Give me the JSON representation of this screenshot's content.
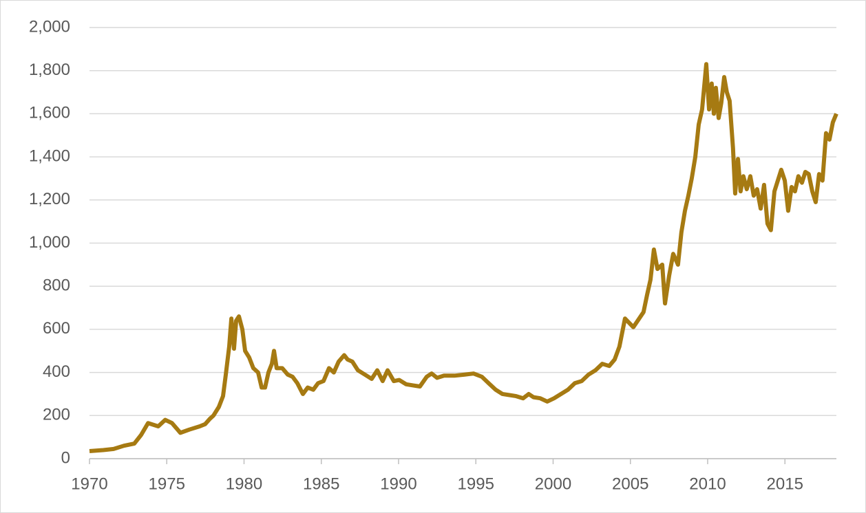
{
  "chart_data": {
    "type": "line",
    "x": [
      1970.0,
      1970.89,
      1971.56,
      1972.23,
      1972.9,
      1973.34,
      1973.79,
      1974.45,
      1974.9,
      1975.34,
      1975.88,
      1976.46,
      1977.13,
      1977.48,
      1977.79,
      1978.02,
      1978.37,
      1978.64,
      1978.82,
      1979.04,
      1979.18,
      1979.35,
      1979.49,
      1979.67,
      1979.89,
      1980.07,
      1980.33,
      1980.6,
      1980.91,
      1981.14,
      1981.36,
      1981.58,
      1981.8,
      1981.94,
      1982.11,
      1982.47,
      1982.83,
      1983.14,
      1983.45,
      1983.81,
      1984.12,
      1984.48,
      1984.79,
      1985.14,
      1985.5,
      1985.81,
      1986.12,
      1986.48,
      1986.7,
      1987.01,
      1987.37,
      1987.82,
      1988.26,
      1988.62,
      1988.97,
      1989.29,
      1989.69,
      1990.04,
      1990.49,
      1990.93,
      1991.38,
      1991.82,
      1992.14,
      1992.49,
      1992.94,
      1993.61,
      1994.27,
      1994.85,
      1995.39,
      1995.83,
      1996.28,
      1996.72,
      1997.17,
      1997.61,
      1998.06,
      1998.42,
      1998.73,
      1999.17,
      1999.62,
      2000.06,
      2000.51,
      2000.96,
      2001.4,
      2001.85,
      2002.29,
      2002.74,
      2003.18,
      2003.63,
      2003.98,
      2004.29,
      2004.65,
      2005.19,
      2005.85,
      2006.08,
      2006.3,
      2006.52,
      2006.75,
      2007.06,
      2007.24,
      2007.51,
      2007.77,
      2008.08,
      2008.3,
      2008.53,
      2008.75,
      2008.97,
      2009.2,
      2009.42,
      2009.64,
      2009.91,
      2010.09,
      2010.26,
      2010.4,
      2010.53,
      2010.71,
      2010.88,
      2011.07,
      2011.24,
      2011.42,
      2011.64,
      2011.78,
      2011.96,
      2012.13,
      2012.31,
      2012.53,
      2012.76,
      2012.98,
      2013.2,
      2013.43,
      2013.65,
      2013.87,
      2014.09,
      2014.32,
      2014.54,
      2014.76,
      2014.99,
      2015.21,
      2015.43,
      2015.65,
      2015.87,
      2016.1,
      2016.32,
      2016.54,
      2016.77,
      2016.99,
      2017.21,
      2017.43,
      2017.66,
      2017.88,
      2018.1,
      2018.33
    ],
    "series": [
      {
        "color": "#a67a12",
        "values": [
          35,
          40,
          45,
          60,
          70,
          110,
          165,
          150,
          180,
          165,
          120,
          135,
          150,
          160,
          185,
          200,
          240,
          290,
          390,
          520,
          650,
          510,
          640,
          660,
          600,
          500,
          470,
          420,
          400,
          330,
          330,
          400,
          440,
          500,
          420,
          420,
          390,
          380,
          350,
          300,
          330,
          320,
          350,
          360,
          420,
          400,
          450,
          480,
          460,
          450,
          410,
          390,
          370,
          410,
          360,
          410,
          360,
          365,
          345,
          340,
          335,
          380,
          395,
          375,
          385,
          385,
          390,
          395,
          380,
          350,
          320,
          300,
          295,
          290,
          280,
          300,
          285,
          280,
          265,
          280,
          300,
          320,
          350,
          360,
          390,
          410,
          440,
          430,
          460,
          520,
          650,
          610,
          680,
          760,
          830,
          970,
          880,
          900,
          720,
          850,
          950,
          900,
          1050,
          1150,
          1220,
          1300,
          1400,
          1550,
          1620,
          1830,
          1620,
          1740,
          1600,
          1720,
          1580,
          1650,
          1770,
          1700,
          1660,
          1440,
          1230,
          1390,
          1240,
          1310,
          1250,
          1310,
          1220,
          1250,
          1160,
          1270,
          1090,
          1060,
          1240,
          1290,
          1340,
          1290,
          1150,
          1260,
          1240,
          1310,
          1280,
          1330,
          1320,
          1240,
          1190,
          1320,
          1290,
          1510,
          1480,
          1560,
          1600
        ]
      }
    ],
    "xlim": [
      1970,
      2018.33
    ],
    "xticks": [
      1970,
      1975,
      1980,
      1985,
      1990,
      1995,
      2000,
      2005,
      2010,
      2015
    ],
    "ylim": [
      0,
      2000
    ],
    "yticks": [
      0,
      {
        "value": 200,
        "label": "200"
      },
      400,
      600,
      800,
      {
        "value": 1000,
        "label": "1,000"
      },
      {
        "value": 1200,
        "label": "1,200"
      },
      {
        "value": 1400,
        "label": "1,400"
      },
      {
        "value": 1600,
        "label": "1,600"
      },
      {
        "value": 1800,
        "label": "1,800"
      },
      {
        "value": 2000,
        "label": "2,000"
      }
    ],
    "grid": true
  }
}
